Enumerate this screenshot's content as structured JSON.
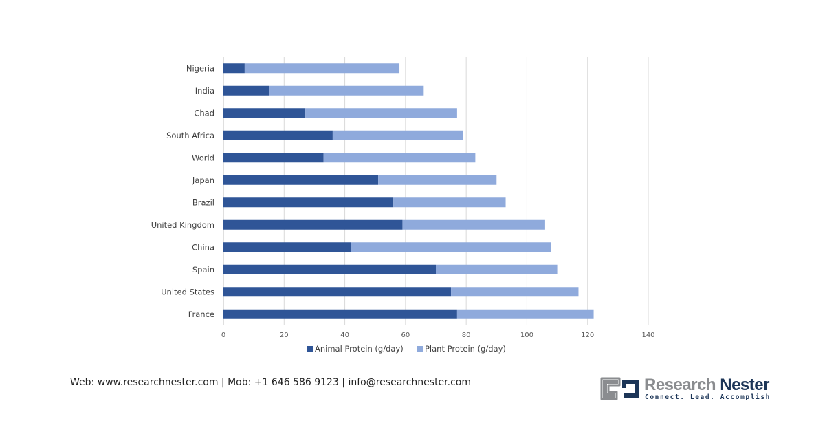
{
  "chart_data": {
    "type": "bar",
    "orientation": "horizontal",
    "stacked": true,
    "title": "",
    "xlabel": "",
    "ylabel": "",
    "categories": [
      "Nigeria",
      "India",
      "Chad",
      "South Africa",
      "World",
      "Japan",
      "Brazil",
      "United Kingdom",
      "China",
      "Spain",
      "United States",
      "France"
    ],
    "series": [
      {
        "name": "Animal Protein (g/day)",
        "color": "#2f5597",
        "values": [
          7,
          15,
          27,
          36,
          33,
          51,
          56,
          59,
          42,
          70,
          75,
          77
        ]
      },
      {
        "name": "Plant Protein (g/day)",
        "color": "#8faadc",
        "values": [
          51,
          51,
          50,
          43,
          50,
          39,
          37,
          47,
          66,
          40,
          42,
          45
        ]
      }
    ],
    "xlim": [
      0,
      140
    ],
    "xticks": [
      "0",
      "20",
      "40",
      "60",
      "80",
      "100",
      "120",
      "140"
    ],
    "grid": true,
    "legend": "bottom"
  },
  "footer": {
    "contact": "Web: www.researchnester.com | Mob: +1 646 586 9123 | info@researchnester.com"
  },
  "logo": {
    "name_part1": "Research",
    "name_part2": "Nester",
    "tagline": "Connect. Lead. Accomplish"
  }
}
